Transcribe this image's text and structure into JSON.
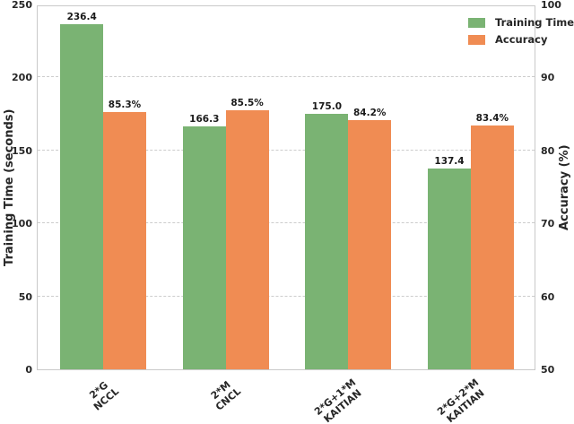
{
  "figure": {
    "background": "#ffffff",
    "spine_color": "#c9c9c9",
    "text_color": "#262626"
  },
  "chart_data": {
    "type": "bar",
    "title": "",
    "categories": [
      [
        "2*G",
        "NCCL"
      ],
      [
        "2*M",
        "CNCL"
      ],
      [
        "2*G+1*M",
        "KAITIAN"
      ],
      [
        "2*G+2*M",
        "KAITIAN"
      ]
    ],
    "series": [
      {
        "name": "Training Time",
        "axis": "left",
        "color": "#7ab373",
        "values": [
          236.4,
          166.3,
          175.0,
          137.4
        ],
        "value_labels": [
          "236.4",
          "166.3",
          "175.0",
          "137.4"
        ]
      },
      {
        "name": "Accuracy",
        "axis": "right",
        "color": "#f08c53",
        "values": [
          85.3,
          85.5,
          84.2,
          83.4
        ],
        "value_labels": [
          "85.3%",
          "85.5%",
          "84.2%",
          "83.4%"
        ]
      }
    ],
    "left_axis": {
      "label": "Training Time (seconds)",
      "min": 0,
      "max": 250,
      "ticks": [
        0,
        50,
        100,
        150,
        200,
        250
      ]
    },
    "right_axis": {
      "label": "Accuracy (%)",
      "min": 50,
      "max": 100,
      "ticks": [
        50,
        60,
        70,
        80,
        90,
        100
      ]
    },
    "legend": {
      "position": "top-right",
      "entries": [
        "Training Time",
        "Accuracy"
      ]
    },
    "grid": {
      "show": true,
      "style": "dashed",
      "color": "#cccccc"
    },
    "bar_width_units": 0.35,
    "xtick_rotation_deg": 40
  }
}
